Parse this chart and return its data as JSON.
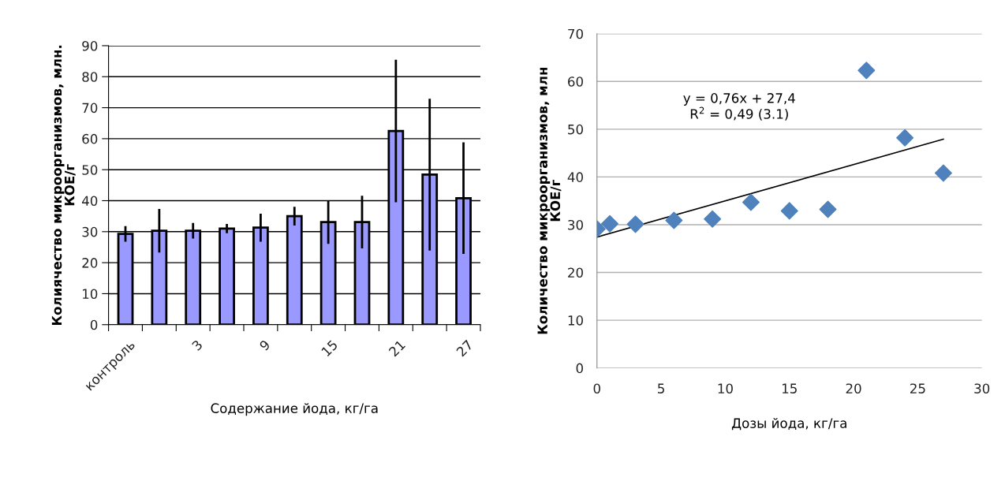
{
  "chart_data": [
    {
      "type": "bar",
      "xlabel": "Содержание йода, кг/га",
      "ylabel": "Колиячество микроорганизмов, млн.\nКОЕ/г",
      "categories": [
        "контроль",
        null,
        "3",
        null,
        "9",
        null,
        "15",
        null,
        "21",
        null,
        "27"
      ],
      "values": [
        29.3,
        30.3,
        30.3,
        31.0,
        31.3,
        35.0,
        33.1,
        33.1,
        62.5,
        48.4,
        40.8
      ],
      "errors": [
        2.5,
        7,
        2.5,
        1.5,
        4.5,
        3,
        7,
        8.5,
        23,
        24.5,
        18
      ],
      "color": "#9999ff",
      "ylim": [
        0,
        90
      ],
      "yticks": [
        0,
        10,
        20,
        30,
        40,
        50,
        60,
        70,
        80,
        90
      ],
      "grid": "y"
    },
    {
      "type": "scatter",
      "xlabel": "Дозы йода, кг/га",
      "ylabel": "Количество микроорганизмов, млн\nКОЕ/г",
      "series": [
        {
          "type": "scatter",
          "color": "#4f81bd",
          "marker": "diamond",
          "x": [
            0,
            1,
            3,
            6,
            9,
            12,
            15,
            18,
            21,
            24,
            27
          ],
          "values": [
            29.1,
            30.2,
            30.1,
            30.9,
            31.2,
            34.7,
            32.9,
            33.2,
            62.3,
            48.2,
            40.8
          ]
        },
        {
          "type": "line",
          "color": "#000000",
          "x": [
            0,
            27
          ],
          "values": [
            27.4,
            47.9
          ]
        }
      ],
      "annotations": [
        "y = 0,76x + 27,4\nR$^{2}$ = 0,49 (3.1)"
      ],
      "xlim": [
        0,
        30
      ],
      "xticks": [
        0,
        5,
        10,
        15,
        20,
        25,
        30
      ],
      "ylim": [
        0,
        70
      ],
      "yticks": [
        0,
        10,
        20,
        30,
        40,
        50,
        60,
        70
      ],
      "grid": "y"
    }
  ]
}
